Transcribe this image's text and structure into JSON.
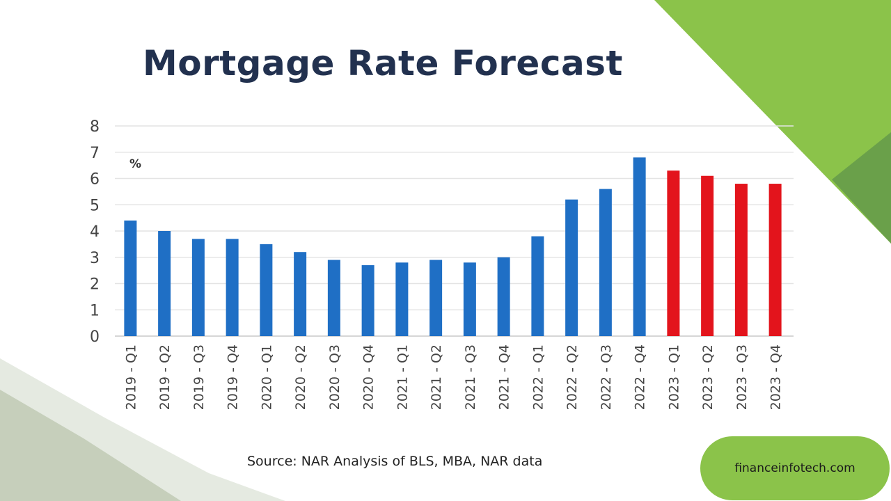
{
  "title": "Mortgage Rate Forecast",
  "source": "Source: NAR Analysis of BLS, MBA, NAR data",
  "badge": "financeinfotech.com",
  "colors": {
    "actual": "#1f6fc5",
    "forecast": "#e3141c",
    "title": "#22314f",
    "accent_green": "#8bc34a",
    "dark_green": "#6aa04a"
  },
  "chart_data": {
    "type": "bar",
    "title": "Mortgage Rate Forecast",
    "ylabel": "%",
    "xlabel": "",
    "ylim": [
      0,
      8
    ],
    "yticks": [
      "0",
      "1",
      "2",
      "3",
      "4",
      "5",
      "6",
      "7",
      "8"
    ],
    "grid": true,
    "categories": [
      "2019 - Q1",
      "2019 - Q2",
      "2019 - Q3",
      "2019 - Q4",
      "2020 - Q1",
      "2020 - Q2",
      "2020 - Q3",
      "2020 - Q4",
      "2021 - Q1",
      "2021 - Q2",
      "2021 - Q3",
      "2021 - Q4",
      "2022 - Q1",
      "2022 - Q2",
      "2022 - Q3",
      "2022 - Q4",
      "2023 - Q1",
      "2023 - Q2",
      "2023 - Q3",
      "2023 - Q4"
    ],
    "values": [
      4.4,
      4.0,
      3.7,
      3.7,
      3.5,
      3.2,
      2.9,
      2.7,
      2.8,
      2.9,
      2.8,
      3.0,
      3.8,
      5.2,
      5.6,
      6.8,
      6.3,
      6.1,
      5.8,
      5.8
    ],
    "forecast_from_index": 16
  }
}
